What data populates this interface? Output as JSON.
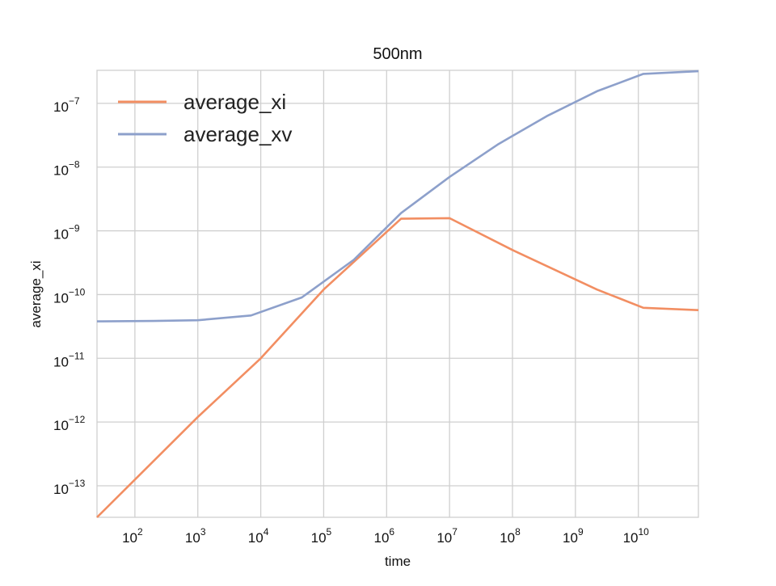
{
  "chart_data": {
    "type": "line",
    "title": "500nm",
    "xlabel": "time",
    "ylabel": "average_xi",
    "x_scale": "log",
    "y_scale": "log",
    "xlim": [
      25,
      90000000000
    ],
    "ylim": [
      3.2e-14,
      3.3e-07
    ],
    "grid": true,
    "legend_position": "top-left",
    "x_ticks": [
      {
        "value": 100,
        "base": "10",
        "exp": "2"
      },
      {
        "value": 1000,
        "base": "10",
        "exp": "3"
      },
      {
        "value": 10000,
        "base": "10",
        "exp": "4"
      },
      {
        "value": 100000,
        "base": "10",
        "exp": "5"
      },
      {
        "value": 1000000,
        "base": "10",
        "exp": "6"
      },
      {
        "value": 10000000,
        "base": "10",
        "exp": "7"
      },
      {
        "value": 100000000,
        "base": "10",
        "exp": "8"
      },
      {
        "value": 1000000000,
        "base": "10",
        "exp": "9"
      },
      {
        "value": 10000000000,
        "base": "10",
        "exp": "10"
      }
    ],
    "y_ticks": [
      {
        "value": 1e-13,
        "base": "10",
        "exp": "−13"
      },
      {
        "value": 1e-12,
        "base": "10",
        "exp": "−12"
      },
      {
        "value": 1e-11,
        "base": "10",
        "exp": "−11"
      },
      {
        "value": 1e-10,
        "base": "10",
        "exp": "−10"
      },
      {
        "value": 1e-09,
        "base": "10",
        "exp": "−9"
      },
      {
        "value": 1e-08,
        "base": "10",
        "exp": "−8"
      },
      {
        "value": 1e-07,
        "base": "10",
        "exp": "−7"
      }
    ],
    "series": [
      {
        "name": "average_xi",
        "color": "#f28e62",
        "points": [
          [
            25,
            3.2e-14
          ],
          [
            1000,
            1.2e-12
          ],
          [
            10000,
            1e-11
          ],
          [
            100000,
            1.2e-10
          ],
          [
            1700000,
            1.55e-09
          ],
          [
            10000000,
            1.58e-09
          ],
          [
            100000000,
            5e-10
          ],
          [
            2200000000,
            1.2e-10
          ],
          [
            12000000000,
            6.2e-11
          ],
          [
            90000000000,
            5.7e-11
          ]
        ]
      },
      {
        "name": "average_xv",
        "color": "#8da0cb",
        "points": [
          [
            25,
            3.8e-11
          ],
          [
            200,
            3.85e-11
          ],
          [
            1000,
            3.95e-11
          ],
          [
            7000,
            4.7e-11
          ],
          [
            45000,
            9e-11
          ],
          [
            300000,
            3.5e-10
          ],
          [
            1700000,
            1.9e-09
          ],
          [
            10000000,
            7e-09
          ],
          [
            60000000,
            2.3e-08
          ],
          [
            350000000,
            6.3e-08
          ],
          [
            2200000000,
            1.55e-07
          ],
          [
            12000000000,
            2.9e-07
          ],
          [
            90000000000,
            3.2e-07
          ]
        ]
      }
    ]
  }
}
